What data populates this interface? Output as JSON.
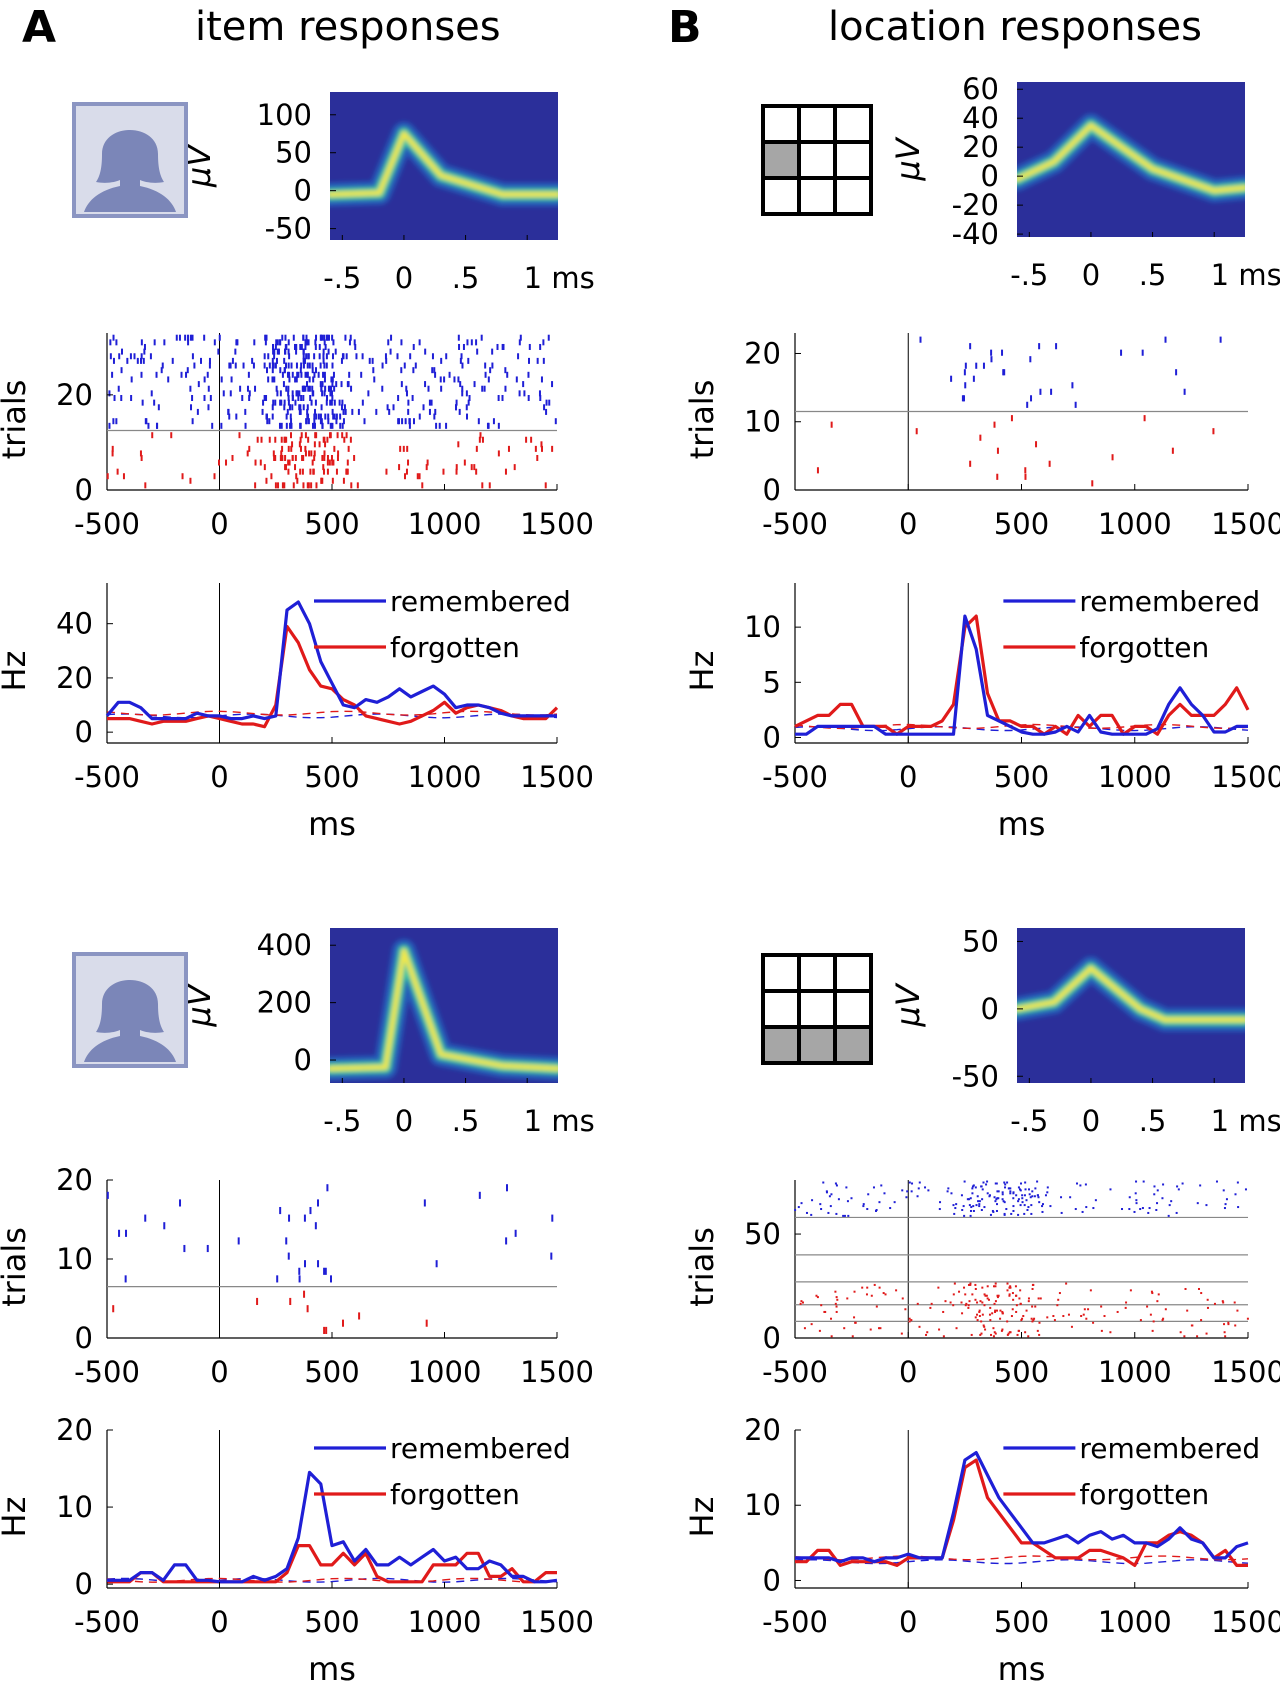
{
  "panels": [
    {
      "letter": "A",
      "title": "item responses"
    },
    {
      "letter": "B",
      "title": "location responses"
    }
  ],
  "colors": {
    "remembered": "#1f1fd6",
    "forgotten": "#e01a1a",
    "waveform_bg": "#2b2f9a",
    "grid_fill": "#a6a6a6"
  },
  "chart_data": [
    {
      "id": "A1-waveform",
      "type": "heatmap",
      "ylabel": "μV",
      "yticks": [
        100,
        50,
        0,
        -50
      ],
      "ylim": [
        -65,
        130
      ],
      "xticks": [
        ".5_neg",
        "0",
        ".5",
        "1 ms"
      ],
      "xtick_labels": [
        "-.5",
        "0",
        ".5",
        "1 ms"
      ],
      "xlim": [
        -0.6,
        1.25
      ],
      "waveform": {
        "x": [
          -0.6,
          -0.2,
          0.0,
          0.3,
          0.8,
          1.25
        ],
        "y": [
          -5,
          -3,
          75,
          20,
          -5,
          -5
        ]
      }
    },
    {
      "id": "A1-raster",
      "type": "scatter",
      "ylabel": "trials",
      "yticks": [
        0,
        20
      ],
      "ylim": [
        0,
        33
      ],
      "xticks": [
        -500,
        0,
        500,
        1000,
        1500
      ],
      "xlim": [
        -500,
        1500
      ],
      "split_trials": [
        12.5
      ],
      "n_remembered": 20,
      "n_forgotten": 12,
      "density": "high"
    },
    {
      "id": "A1-rate",
      "type": "line",
      "ylabel": "Hz",
      "xlabel": "ms",
      "yticks": [
        0,
        20,
        40
      ],
      "ylim": [
        -4,
        55
      ],
      "xticks": [
        -500,
        0,
        500,
        1000,
        1500
      ],
      "xlim": [
        -500,
        1500
      ],
      "x": [
        -500,
        -450,
        -400,
        -350,
        -300,
        -250,
        -200,
        -150,
        -100,
        -50,
        0,
        50,
        100,
        150,
        200,
        250,
        300,
        350,
        400,
        450,
        500,
        550,
        600,
        650,
        700,
        750,
        800,
        850,
        900,
        950,
        1000,
        1050,
        1100,
        1150,
        1200,
        1250,
        1300,
        1350,
        1400,
        1450,
        1500
      ],
      "series": [
        {
          "name": "remembered",
          "values": [
            6,
            11,
            11,
            9,
            5,
            5,
            5,
            5,
            7,
            6,
            6,
            5,
            5,
            6,
            5,
            6,
            45,
            48,
            40,
            26,
            18,
            10,
            9,
            12,
            11,
            13,
            16,
            13,
            15,
            17,
            14,
            9,
            10,
            10,
            9,
            7,
            6,
            6,
            6,
            6,
            6
          ]
        },
        {
          "name": "forgotten",
          "values": [
            5,
            5,
            5,
            4,
            3,
            4,
            4,
            4,
            5,
            6,
            5,
            4,
            3,
            3,
            2,
            10,
            39,
            33,
            23,
            17,
            16,
            12,
            10,
            6,
            5,
            4,
            3,
            4,
            6,
            8,
            11,
            7,
            9,
            10,
            9,
            8,
            6,
            5,
            5,
            5,
            9
          ]
        }
      ],
      "baseline_remembered": 6,
      "baseline_forgotten": 7
    },
    {
      "id": "B1-waveform",
      "type": "heatmap",
      "ylabel": "μV",
      "yticks": [
        60,
        40,
        20,
        0,
        -20,
        -40
      ],
      "ylim": [
        -42,
        65
      ],
      "xtick_labels": [
        "-.5",
        "0",
        ".5",
        "1 ms"
      ],
      "xlim": [
        -0.6,
        1.25
      ],
      "waveform": {
        "x": [
          -0.6,
          -0.3,
          0.0,
          0.5,
          1.0,
          1.25
        ],
        "y": [
          -2,
          10,
          35,
          5,
          -10,
          -8
        ]
      }
    },
    {
      "id": "B1-raster",
      "type": "scatter",
      "ylabel": "trials",
      "yticks": [
        0,
        10,
        20
      ],
      "ylim": [
        0,
        23
      ],
      "xticks": [
        -500,
        0,
        500,
        1000,
        1500
      ],
      "xlim": [
        -500,
        1500
      ],
      "split_trials": [
        11.5
      ],
      "n_remembered": 11,
      "n_forgotten": 11,
      "density": "low"
    },
    {
      "id": "B1-rate",
      "type": "line",
      "ylabel": "Hz",
      "xlabel": "ms",
      "yticks": [
        0,
        5,
        10
      ],
      "ylim": [
        -0.5,
        14
      ],
      "xticks": [
        -500,
        0,
        500,
        1000,
        1500
      ],
      "xlim": [
        -500,
        1500
      ],
      "x": [
        -500,
        -450,
        -400,
        -350,
        -300,
        -250,
        -200,
        -150,
        -100,
        -50,
        0,
        50,
        100,
        150,
        200,
        250,
        300,
        350,
        400,
        450,
        500,
        550,
        600,
        650,
        700,
        750,
        800,
        850,
        900,
        950,
        1000,
        1050,
        1100,
        1150,
        1200,
        1250,
        1300,
        1350,
        1400,
        1450,
        1500
      ],
      "series": [
        {
          "name": "remembered",
          "values": [
            0.3,
            0.3,
            1,
            1,
            1,
            1,
            1,
            1,
            0.3,
            0.3,
            0.3,
            0.3,
            0.3,
            0.3,
            0.3,
            11,
            8,
            2,
            1.5,
            1,
            0.5,
            0.3,
            0.3,
            0.5,
            1,
            0.5,
            2,
            0.5,
            0.3,
            0.3,
            0.3,
            0.3,
            0.8,
            3,
            4.5,
            3,
            2,
            0.5,
            0.5,
            1,
            1
          ]
        },
        {
          "name": "forgotten",
          "values": [
            1,
            1.5,
            2,
            2,
            3,
            3,
            1,
            1,
            1,
            0.3,
            1,
            1,
            1,
            1.5,
            3,
            10,
            11,
            4,
            1.5,
            1.5,
            1,
            1,
            0.3,
            1,
            0.3,
            2,
            1,
            2,
            2,
            0.3,
            1,
            1,
            0.3,
            2,
            3,
            2,
            2,
            2,
            3,
            4.5,
            2.5
          ]
        }
      ],
      "baseline_remembered": 0.8,
      "baseline_forgotten": 1.0
    },
    {
      "id": "A2-waveform",
      "type": "heatmap",
      "ylabel": "μV",
      "yticks": [
        400,
        200,
        0
      ],
      "ylim": [
        -80,
        460
      ],
      "xtick_labels": [
        "-.5",
        "0",
        ".5",
        "1 ms"
      ],
      "xlim": [
        -0.6,
        1.25
      ],
      "waveform": {
        "x": [
          -0.6,
          -0.15,
          0.0,
          0.3,
          0.8,
          1.25
        ],
        "y": [
          -30,
          -25,
          380,
          20,
          -20,
          -30
        ]
      }
    },
    {
      "id": "A2-raster",
      "type": "scatter",
      "ylabel": "trials",
      "yticks": [
        0,
        10,
        20
      ],
      "ylim": [
        0,
        20
      ],
      "xticks": [
        -500,
        0,
        500,
        1000,
        1500
      ],
      "xlim": [
        -500,
        1500
      ],
      "split_trials": [
        6.5
      ],
      "n_remembered": 13,
      "n_forgotten": 6,
      "density": "low"
    },
    {
      "id": "A2-rate",
      "type": "line",
      "ylabel": "Hz",
      "xlabel": "ms",
      "yticks": [
        0,
        10,
        20
      ],
      "ylim": [
        -0.5,
        20
      ],
      "xticks": [
        -500,
        0,
        500,
        1000,
        1500
      ],
      "xlim": [
        -500,
        1500
      ],
      "x": [
        -500,
        -450,
        -400,
        -350,
        -300,
        -250,
        -200,
        -150,
        -100,
        -50,
        0,
        50,
        100,
        150,
        200,
        250,
        300,
        350,
        400,
        450,
        500,
        550,
        600,
        650,
        700,
        750,
        800,
        850,
        900,
        950,
        1000,
        1050,
        1100,
        1150,
        1200,
        1250,
        1300,
        1350,
        1400,
        1450,
        1500
      ],
      "series": [
        {
          "name": "remembered",
          "values": [
            0.5,
            0.5,
            0.5,
            1.5,
            1.5,
            0.5,
            2.5,
            2.5,
            0.5,
            0.5,
            0.3,
            0.3,
            0.3,
            1,
            0.5,
            1,
            2,
            6,
            14.5,
            13,
            5,
            5.5,
            3,
            4.5,
            2.5,
            2.5,
            3.5,
            2.5,
            3.5,
            4.5,
            3,
            3.5,
            2,
            2,
            3,
            2.5,
            1,
            1,
            0.3,
            0.3,
            0.5
          ]
        },
        {
          "name": "forgotten",
          "values": [
            0.3,
            0.3,
            0.3,
            1.5,
            1.5,
            0.3,
            0.3,
            0.3,
            0.3,
            0.3,
            0.3,
            0.3,
            0.3,
            0.3,
            0.3,
            0.3,
            1.5,
            5,
            5,
            2.5,
            2.5,
            4,
            2.5,
            4,
            1,
            0.3,
            0.3,
            0.3,
            0.3,
            2.5,
            2.5,
            2.5,
            4,
            4,
            1,
            1,
            2,
            0.3,
            0.3,
            1.5,
            1.5
          ]
        }
      ],
      "baseline_remembered": 0.5,
      "baseline_forgotten": 0.5
    },
    {
      "id": "B2-waveform",
      "type": "heatmap",
      "ylabel": "μV",
      "yticks": [
        50,
        0,
        -50
      ],
      "ylim": [
        -55,
        60
      ],
      "xtick_labels": [
        "-.5",
        "0",
        ".5",
        "1 ms"
      ],
      "xlim": [
        -0.6,
        1.25
      ],
      "waveform": {
        "x": [
          -0.6,
          -0.3,
          0.0,
          0.4,
          0.6,
          1.25
        ],
        "y": [
          0,
          5,
          30,
          0,
          -8,
          -8
        ]
      }
    },
    {
      "id": "B2-raster",
      "type": "scatter",
      "ylabel": "trials",
      "yticks": [
        0,
        50
      ],
      "ylim": [
        0,
        76
      ],
      "xticks": [
        -500,
        0,
        500,
        1000,
        1500
      ],
      "xlim": [
        -500,
        1500
      ],
      "split_trials": [
        58,
        40,
        27,
        16,
        8
      ],
      "n_remembered": 36,
      "n_forgotten": 40,
      "density": "dots"
    },
    {
      "id": "B2-rate",
      "type": "line",
      "ylabel": "Hz",
      "xlabel": "ms",
      "yticks": [
        0,
        10,
        20
      ],
      "ylim": [
        -1,
        20
      ],
      "xticks": [
        -500,
        0,
        500,
        1000,
        1500
      ],
      "xlim": [
        -500,
        1500
      ],
      "x": [
        -500,
        -450,
        -400,
        -350,
        -300,
        -250,
        -200,
        -150,
        -100,
        -50,
        0,
        50,
        100,
        150,
        200,
        250,
        300,
        350,
        400,
        450,
        500,
        550,
        600,
        650,
        700,
        750,
        800,
        850,
        900,
        950,
        1000,
        1050,
        1100,
        1150,
        1200,
        1250,
        1300,
        1350,
        1400,
        1450,
        1500
      ],
      "series": [
        {
          "name": "remembered",
          "values": [
            3,
            3,
            3,
            3,
            2.5,
            3,
            3,
            2.5,
            3,
            3,
            3.5,
            3,
            3,
            3,
            9,
            16,
            17,
            14,
            11,
            9,
            7,
            5,
            5,
            5.5,
            6,
            5,
            6,
            6.5,
            5.5,
            6,
            5,
            5,
            4.5,
            5.5,
            7,
            5.5,
            5,
            3,
            3,
            4.5,
            5
          ]
        },
        {
          "name": "forgotten",
          "values": [
            2.5,
            2.5,
            4,
            4,
            2,
            2.5,
            2.5,
            2.5,
            2.5,
            2,
            3,
            3,
            3,
            3,
            8,
            15,
            16,
            11,
            9,
            7,
            5,
            5,
            4,
            3,
            3,
            3,
            4,
            4,
            3.5,
            3,
            2,
            5,
            5,
            6,
            6.5,
            6,
            5,
            3,
            4,
            2,
            2
          ]
        }
      ],
      "baseline_remembered": 2.5,
      "baseline_forgotten": 3
    }
  ],
  "legend": {
    "remembered": "remembered",
    "forgotten": "forgotten"
  },
  "grid_icons": {
    "B1": [
      3
    ],
    "B2": [
      6,
      7,
      8
    ]
  },
  "icons": {
    "A1": "person-silhouette-icon",
    "A2": "person-silhouette-icon",
    "B1": "3x3-grid-icon",
    "B2": "3x3-grid-icon"
  }
}
